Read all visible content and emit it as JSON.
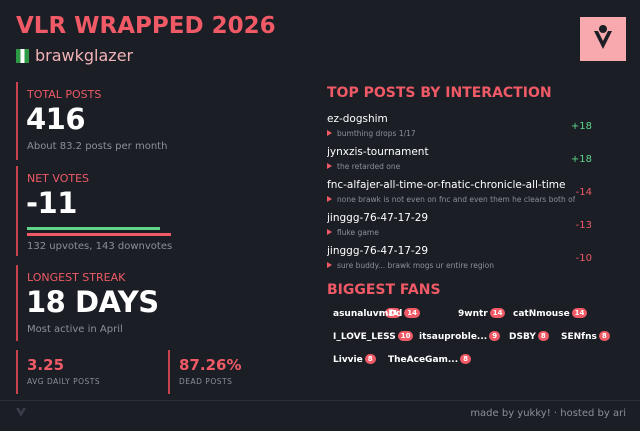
{
  "header": {
    "title": "VLR WRAPPED 2026",
    "username": "brawkglazer"
  },
  "stats": {
    "total_posts": {
      "label": "TOTAL POSTS",
      "value": "416",
      "sub": "About 83.2 posts per month"
    },
    "net_votes": {
      "label": "NET VOTES",
      "value": "-11",
      "sub": "132 upvotes, 143 downvotes"
    },
    "longest_streak": {
      "label": "LONGEST STREAK",
      "value": "18 DAYS",
      "sub": "Most active in April"
    },
    "avg_daily": {
      "value": "3.25",
      "label": "AVG DAILY POSTS"
    },
    "dead_posts": {
      "value": "87.26%",
      "label": "DEAD POSTS"
    }
  },
  "top_posts": {
    "title": "TOP POSTS BY INTERACTION",
    "items": [
      {
        "title": "ez-dogshim",
        "snippet": "bumthing drops 1/17",
        "score": "+18"
      },
      {
        "title": "jynxzis-tournament",
        "snippet": "the retarded one",
        "score": "+18"
      },
      {
        "title": "fnc-alfajer-all-time-or-fnatic-chronicle-all-time",
        "snippet": "none brawk is not even on fnc and even them he clears both of th",
        "score": "-14"
      },
      {
        "title": "jinggg-76-47-17-29",
        "snippet": "fluke game",
        "score": "-13"
      },
      {
        "title": "jinggg-76-47-17-29",
        "snippet": "sure buddy... brawk mogs ur entire region",
        "score": "-10"
      }
    ]
  },
  "fans": {
    "title": "BIGGEST FANS",
    "items": [
      {
        "name": "asunaluvr",
        "count": 31
      },
      {
        "name": "mDd",
        "count": 14
      },
      {
        "name": "9wntr",
        "count": 14
      },
      {
        "name": "catNmouse",
        "count": 14
      },
      {
        "name": "I_LOVE_LESS",
        "count": 10
      },
      {
        "name": "itsauproble...",
        "count": 9
      },
      {
        "name": "DSBY",
        "count": 8
      },
      {
        "name": "SENfns",
        "count": 8
      },
      {
        "name": "Livvie",
        "count": 8
      },
      {
        "name": "TheAceGam...",
        "count": 8
      }
    ]
  },
  "footer": {
    "made_by": "made by yukky!",
    "hosted_by": "hosted by ari"
  }
}
